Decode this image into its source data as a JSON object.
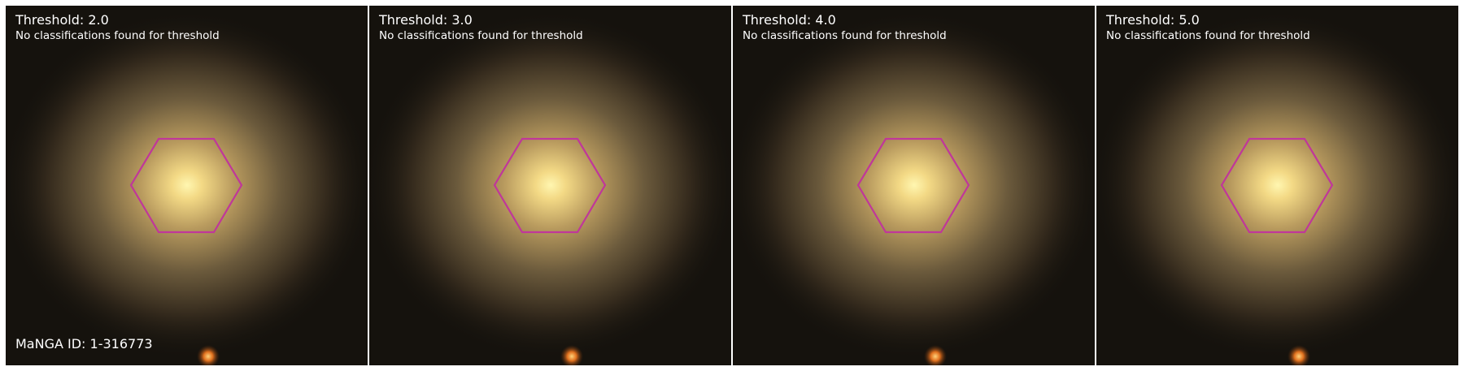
{
  "figure": {
    "panels": [
      {
        "title": "Threshold: 2.0",
        "subtitle": "No classifications found for threshold",
        "footer": "MaNGA ID: 1-316773"
      },
      {
        "title": "Threshold: 3.0",
        "subtitle": "No classifications found for threshold",
        "footer": ""
      },
      {
        "title": "Threshold: 4.0",
        "subtitle": "No classifications found for threshold",
        "footer": ""
      },
      {
        "title": "Threshold: 5.0",
        "subtitle": "No classifications found for threshold",
        "footer": ""
      }
    ],
    "colors": {
      "hexagon_outline": "#c0379a",
      "galaxy_core": "#fff0a0",
      "galaxy_halo": "#b9a063",
      "sky_background": "#15120d",
      "text": "#ffffff"
    },
    "icons": [
      "ifu-hexagon-outline",
      "galaxy-image",
      "foreground-star"
    ]
  }
}
